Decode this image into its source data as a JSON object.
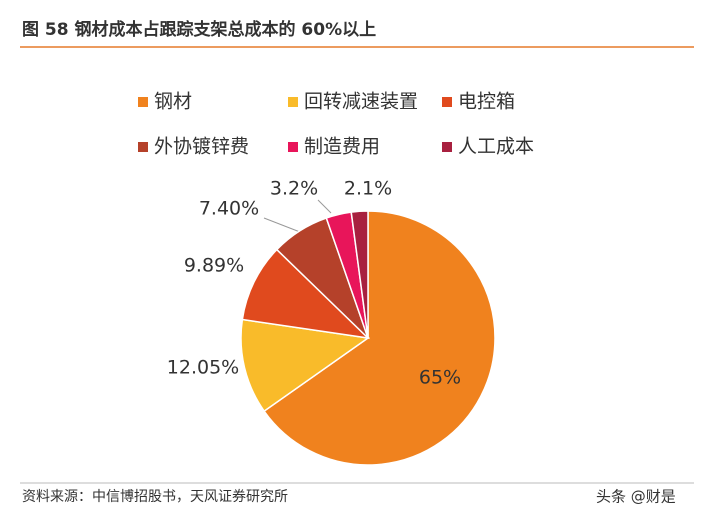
{
  "chart_data": {
    "type": "pie",
    "title": "图 58 钢材成本占跟踪支架总成本的 60%以上",
    "categories": [
      "钢材",
      "回转减速装置",
      "电控箱",
      "外协镀锌费",
      "制造费用",
      "人工成本"
    ],
    "values": [
      65,
      12.05,
      9.89,
      7.4,
      3.2,
      2.1
    ],
    "value_labels": [
      "65%",
      "12.05%",
      "9.89%",
      "7.40%",
      "3.2%",
      "2.1%"
    ],
    "colors": [
      "#f0821e",
      "#f9bb2a",
      "#e04a1e",
      "#b5412a",
      "#e8155a",
      "#a8203f"
    ],
    "legend": "top",
    "source": "资料来源：中信博招股书，天风证券研究所",
    "watermark": "头条 @财是"
  }
}
